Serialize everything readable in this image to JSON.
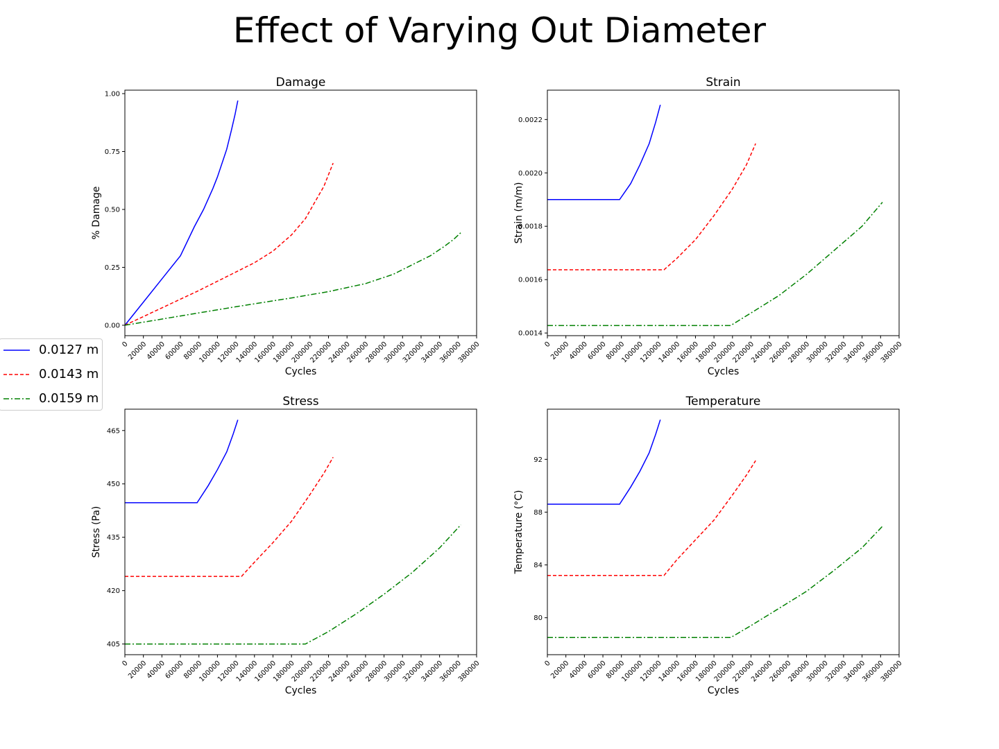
{
  "figure": {
    "title": "Effect of Varying Out Diameter"
  },
  "legend": {
    "placement": "left",
    "entries": [
      {
        "label": "0.0127 m",
        "color": "#0000ff",
        "style": "solid"
      },
      {
        "label": "0.0143 m",
        "color": "#ff0000",
        "style": "dashed"
      },
      {
        "label": "0.0159 m",
        "color": "#008000",
        "style": "dashdot"
      }
    ]
  },
  "chart_data": [
    {
      "type": "line",
      "title": "Damage",
      "xlabel": "Cycles",
      "ylabel": "% Damage",
      "xlim": [
        0,
        380000
      ],
      "ylim": [
        -0.045,
        1.015
      ],
      "xticks": [
        "0",
        "20000",
        "40000",
        "60000",
        "80000",
        "100000",
        "120000",
        "140000",
        "160000",
        "180000",
        "200000",
        "220000",
        "240000",
        "260000",
        "280000",
        "300000",
        "320000",
        "340000",
        "360000",
        "380000"
      ],
      "yticks": [
        "0.00",
        "0.25",
        "0.50",
        "0.75",
        "1.00"
      ],
      "grid": false,
      "series": [
        {
          "name": "0.0127 m",
          "color": "#0000ff",
          "style": "solid",
          "x": [
            0,
            20000,
            40000,
            60000,
            75000,
            85000,
            95000,
            100000,
            105000,
            110000,
            115000,
            119000,
            122000
          ],
          "y": [
            0,
            0.1,
            0.2,
            0.3,
            0.425,
            0.5,
            0.59,
            0.64,
            0.7,
            0.76,
            0.84,
            0.91,
            0.97
          ]
        },
        {
          "name": "0.0143 m",
          "color": "#ff0000",
          "style": "dashed",
          "x": [
            0,
            40000,
            80000,
            120000,
            140000,
            160000,
            180000,
            195000,
            205000,
            215000,
            220000,
            225000
          ],
          "y": [
            0,
            0.075,
            0.15,
            0.23,
            0.27,
            0.32,
            0.39,
            0.46,
            0.53,
            0.6,
            0.65,
            0.7
          ]
        },
        {
          "name": "0.0159 m",
          "color": "#008000",
          "style": "dashdot",
          "x": [
            0,
            60000,
            120000,
            180000,
            220000,
            260000,
            290000,
            310000,
            330000,
            345000,
            355000,
            363000
          ],
          "y": [
            0,
            0.04,
            0.08,
            0.118,
            0.145,
            0.18,
            0.22,
            0.26,
            0.3,
            0.34,
            0.37,
            0.4
          ]
        }
      ]
    },
    {
      "type": "line",
      "title": "Strain",
      "xlabel": "Cycles",
      "ylabel": "Strain (m/m)",
      "xlim": [
        0,
        380000
      ],
      "ylim": [
        0.00139,
        0.00231
      ],
      "xticks": [
        "0",
        "20000",
        "40000",
        "60000",
        "80000",
        "100000",
        "120000",
        "140000",
        "160000",
        "180000",
        "200000",
        "220000",
        "240000",
        "260000",
        "280000",
        "300000",
        "320000",
        "340000",
        "360000",
        "380000"
      ],
      "yticks": [
        "0.0014",
        "0.0016",
        "0.0018",
        "0.0020",
        "0.0022"
      ],
      "grid": false,
      "series": [
        {
          "name": "0.0127 m",
          "color": "#0000ff",
          "style": "solid",
          "x": [
            0,
            78000,
            90000,
            100000,
            110000,
            117000,
            122000
          ],
          "y": [
            0.0019,
            0.0019,
            0.00196,
            0.00203,
            0.00211,
            0.00219,
            0.002255
          ]
        },
        {
          "name": "0.0143 m",
          "color": "#ff0000",
          "style": "dashed",
          "x": [
            0,
            126000,
            140000,
            160000,
            180000,
            200000,
            215000,
            225000
          ],
          "y": [
            0.001637,
            0.001637,
            0.00168,
            0.00175,
            0.00184,
            0.00194,
            0.00203,
            0.00211
          ]
        },
        {
          "name": "0.0159 m",
          "color": "#008000",
          "style": "dashdot",
          "x": [
            0,
            198000,
            220000,
            250000,
            280000,
            310000,
            340000,
            362000
          ],
          "y": [
            0.001428,
            0.001428,
            0.001475,
            0.00154,
            0.00162,
            0.00171,
            0.0018,
            0.00189
          ]
        }
      ]
    },
    {
      "type": "line",
      "title": "Stress",
      "xlabel": "Cycles",
      "ylabel": "Stress (Pa)",
      "xlim": [
        0,
        380000
      ],
      "ylim": [
        402,
        471
      ],
      "xticks": [
        "0",
        "20000",
        "40000",
        "60000",
        "80000",
        "100000",
        "120000",
        "140000",
        "160000",
        "180000",
        "200000",
        "220000",
        "240000",
        "260000",
        "280000",
        "300000",
        "320000",
        "340000",
        "360000",
        "380000"
      ],
      "yticks": [
        "405",
        "420",
        "435",
        "450",
        "465"
      ],
      "grid": false,
      "series": [
        {
          "name": "0.0127 m",
          "color": "#0000ff",
          "style": "solid",
          "x": [
            0,
            78000,
            90000,
            100000,
            110000,
            117000,
            122000
          ],
          "y": [
            444.7,
            444.7,
            449.5,
            454,
            459,
            464,
            468
          ]
        },
        {
          "name": "0.0143 m",
          "color": "#ff0000",
          "style": "dashed",
          "x": [
            0,
            126000,
            140000,
            160000,
            180000,
            200000,
            215000,
            225000
          ],
          "y": [
            424,
            424,
            428,
            433.5,
            439.5,
            447,
            453,
            457.5
          ]
        },
        {
          "name": "0.0159 m",
          "color": "#008000",
          "style": "dashdot",
          "x": [
            0,
            195000,
            220000,
            250000,
            280000,
            310000,
            340000,
            363000
          ],
          "y": [
            405,
            405,
            408.5,
            413.5,
            419,
            425,
            432,
            438.5
          ]
        }
      ]
    },
    {
      "type": "line",
      "title": "Temperature",
      "xlabel": "Cycles",
      "ylabel": "Temperature (°C)",
      "xlim": [
        0,
        380000
      ],
      "ylim": [
        77.2,
        95.8
      ],
      "xticks": [
        "0",
        "20000",
        "40000",
        "60000",
        "80000",
        "100000",
        "120000",
        "140000",
        "160000",
        "180000",
        "200000",
        "220000",
        "240000",
        "260000",
        "280000",
        "300000",
        "320000",
        "340000",
        "360000",
        "380000"
      ],
      "yticks": [
        "80",
        "84",
        "88",
        "92"
      ],
      "grid": false,
      "series": [
        {
          "name": "0.0127 m",
          "color": "#0000ff",
          "style": "solid",
          "x": [
            0,
            78000,
            90000,
            100000,
            110000,
            117000,
            122000
          ],
          "y": [
            88.6,
            88.6,
            89.9,
            91.1,
            92.5,
            93.9,
            95
          ]
        },
        {
          "name": "0.0143 m",
          "color": "#ff0000",
          "style": "dashed",
          "x": [
            0,
            126000,
            140000,
            160000,
            180000,
            200000,
            215000,
            225000
          ],
          "y": [
            83.2,
            83.2,
            84.4,
            85.9,
            87.4,
            89.3,
            90.8,
            91.9
          ]
        },
        {
          "name": "0.0159 m",
          "color": "#008000",
          "style": "dashdot",
          "x": [
            0,
            198000,
            220000,
            250000,
            280000,
            310000,
            340000,
            363000
          ],
          "y": [
            78.5,
            78.5,
            79.4,
            80.7,
            82,
            83.6,
            85.3,
            87
          ]
        }
      ]
    }
  ]
}
